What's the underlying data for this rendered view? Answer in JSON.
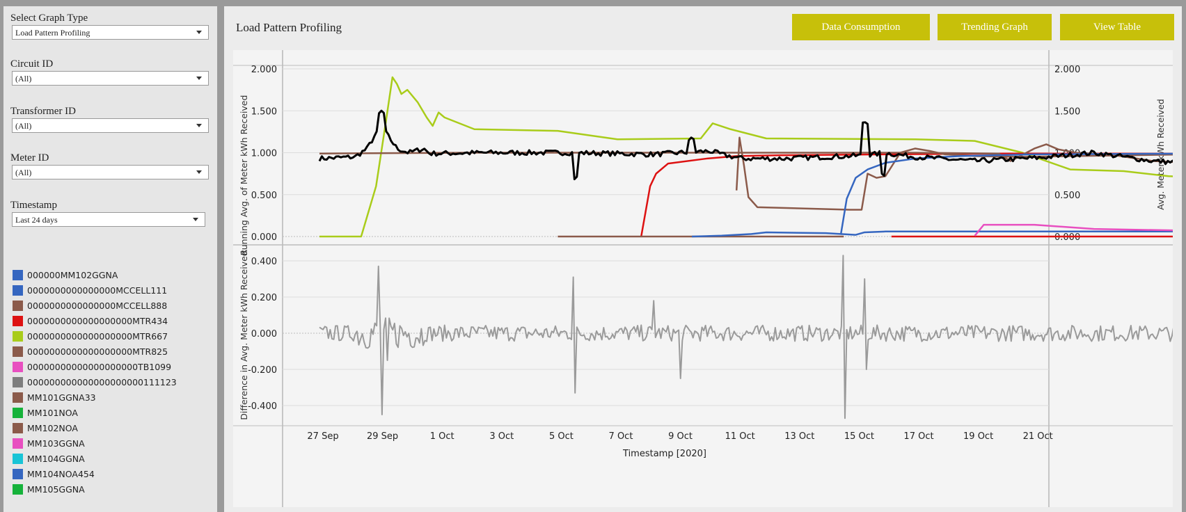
{
  "filters": {
    "graph_type": {
      "label": "Select Graph Type",
      "value": "Load Pattern Profiling"
    },
    "circuit": {
      "label": "Circuit ID",
      "value": "(All)"
    },
    "transformer": {
      "label": "Transformer ID",
      "value": "(All)"
    },
    "meter": {
      "label": "Meter ID",
      "value": "(All)"
    },
    "timestamp": {
      "label": "Timestamp",
      "value": "Last 24 days"
    }
  },
  "legend": [
    {
      "label": "000000MM102GGNA",
      "color": "#3566c0"
    },
    {
      "label": "0000000000000000MCCELL111",
      "color": "#3566c0"
    },
    {
      "label": "0000000000000000MCCELL888",
      "color": "#8b5a4a"
    },
    {
      "label": "0000000000000000000MTR434",
      "color": "#dd1111"
    },
    {
      "label": "0000000000000000000MTR667",
      "color": "#a9cc1a"
    },
    {
      "label": "0000000000000000000MTR825",
      "color": "#8b5a4a"
    },
    {
      "label": "00000000000000000000TB1099",
      "color": "#e84fc0"
    },
    {
      "label": "000000000000000000000111123",
      "color": "#7d7d7d"
    },
    {
      "label": "MM101GGNA33",
      "color": "#8b5a4a"
    },
    {
      "label": "MM101NOA",
      "color": "#16b23a"
    },
    {
      "label": "MM102NOA",
      "color": "#8b5a4a"
    },
    {
      "label": "MM103GGNA",
      "color": "#e84fc0"
    },
    {
      "label": "MM104GGNA",
      "color": "#18c4d6"
    },
    {
      "label": "MM104NOA454",
      "color": "#3566c0"
    },
    {
      "label": "MM105GGNA",
      "color": "#16b23a"
    }
  ],
  "header": {
    "title": "Load Pattern Profiling",
    "buttons": [
      "Data Consumption",
      "Trending Graph",
      "View Table"
    ],
    "button_color": "#c7c00a"
  },
  "chart_data": [
    {
      "type": "line",
      "ylabel": "Running Avg. of Meter kWh Received",
      "ylabel_right": "Avg. Meter kWh Received",
      "yticks": [
        "0.000",
        "0.500",
        "1.000",
        "1.500",
        "2.000"
      ],
      "ylim": [
        0,
        2
      ],
      "xlim_days": "Sep 27 – Oct 21, 2020",
      "series": [
        {
          "color": "#a9cc1a",
          "points": [
            [
              0,
              0
            ],
            [
              1.4,
              0
            ],
            [
              1.9,
              0.6
            ],
            [
              2.2,
              1.3
            ],
            [
              2.45,
              1.9
            ],
            [
              2.6,
              1.82
            ],
            [
              2.75,
              1.7
            ],
            [
              2.95,
              1.75
            ],
            [
              3.3,
              1.6
            ],
            [
              3.6,
              1.42
            ],
            [
              3.8,
              1.32
            ],
            [
              4.0,
              1.48
            ],
            [
              4.2,
              1.42
            ],
            [
              5.2,
              1.28
            ],
            [
              8.0,
              1.26
            ],
            [
              10.0,
              1.16
            ],
            [
              12.8,
              1.17
            ],
            [
              13.2,
              1.35
            ],
            [
              13.8,
              1.28
            ],
            [
              15.0,
              1.17
            ],
            [
              20.0,
              1.16
            ],
            [
              22.0,
              1.14
            ],
            [
              23.6,
              1.0
            ],
            [
              25.2,
              0.8
            ],
            [
              27.0,
              0.78
            ],
            [
              28.5,
              0.72
            ],
            [
              29.2,
              0.71
            ]
          ]
        },
        {
          "color": "#dd1111",
          "points": [
            [
              10.8,
              0
            ],
            [
              11.1,
              0.6
            ],
            [
              11.3,
              0.75
            ],
            [
              11.7,
              0.87
            ],
            [
              13.0,
              0.93
            ],
            [
              14.0,
              0.96
            ],
            [
              15.5,
              0.97
            ],
            [
              19.0,
              0.98
            ],
            [
              23.0,
              0.99
            ],
            [
              29.2,
              0.99
            ]
          ]
        },
        {
          "color": "#dd1111",
          "points": [
            [
              19.2,
              0
            ],
            [
              29.2,
              0
            ]
          ]
        },
        {
          "color": "#8b5a4a",
          "points": [
            [
              0,
              0.99
            ],
            [
              5.0,
              1.0
            ],
            [
              20.0,
              1.0
            ],
            [
              22.8,
              0.99
            ],
            [
              23.2,
              0.9
            ],
            [
              24.0,
              1.05
            ],
            [
              24.4,
              1.1
            ],
            [
              24.8,
              1.04
            ],
            [
              25.4,
              1.0
            ],
            [
              26.5,
              0.98
            ],
            [
              28.0,
              0.9
            ],
            [
              29.2,
              0.88
            ]
          ]
        },
        {
          "color": "#8b5a4a",
          "points": [
            [
              14.0,
              0.55
            ],
            [
              14.1,
              1.18
            ],
            [
              14.25,
              0.85
            ],
            [
              14.4,
              0.47
            ],
            [
              14.7,
              0.35
            ],
            [
              17.8,
              0.32
            ],
            [
              18.2,
              0.32
            ],
            [
              18.4,
              0.75
            ],
            [
              18.7,
              0.7
            ],
            [
              19.0,
              0.72
            ],
            [
              19.5,
              1.0
            ],
            [
              20.0,
              1.05
            ],
            [
              20.5,
              1.02
            ],
            [
              21.0,
              0.98
            ],
            [
              22.0,
              0.96
            ],
            [
              23.5,
              0.95
            ],
            [
              29.2,
              0.98
            ]
          ]
        },
        {
          "color": "#8b5a4a",
          "points": [
            [
              8.0,
              0
            ],
            [
              17.6,
              0
            ]
          ]
        },
        {
          "color": "#3566c0",
          "points": [
            [
              12.5,
              0
            ],
            [
              13.5,
              0.01
            ],
            [
              14.5,
              0.03
            ],
            [
              15.0,
              0.05
            ],
            [
              17.0,
              0.04
            ],
            [
              18.0,
              0.02
            ],
            [
              18.3,
              0.05
            ],
            [
              19.0,
              0.06
            ],
            [
              29.2,
              0.06
            ]
          ]
        },
        {
          "color": "#3566c0",
          "points": [
            [
              17.5,
              0.02
            ],
            [
              17.7,
              0.45
            ],
            [
              18.0,
              0.7
            ],
            [
              18.4,
              0.8
            ],
            [
              19.0,
              0.88
            ],
            [
              20.0,
              0.93
            ],
            [
              21.5,
              0.96
            ],
            [
              24.0,
              0.98
            ],
            [
              29.2,
              0.99
            ]
          ]
        },
        {
          "color": "#e84fc0",
          "points": [
            [
              22.0,
              0.01
            ],
            [
              22.3,
              0.14
            ],
            [
              24.0,
              0.14
            ],
            [
              26.0,
              0.09
            ],
            [
              29.2,
              0.07
            ]
          ]
        },
        {
          "color": "#000000",
          "stroke_width": 3,
          "noisy": true,
          "points": [
            [
              0,
              0.93
            ],
            [
              1.2,
              0.95
            ],
            [
              1.6,
              1.05
            ],
            [
              1.85,
              1.2
            ],
            [
              2.1,
              1.3
            ],
            [
              2.3,
              1.2
            ],
            [
              2.6,
              1.05
            ],
            [
              3.0,
              1.0
            ],
            [
              3.5,
              1.05
            ],
            [
              3.7,
              0.99
            ],
            [
              5.6,
              1.0
            ],
            [
              8.5,
              1.0
            ],
            [
              11.2,
              0.98
            ],
            [
              13.1,
              1.02
            ],
            [
              13.6,
              0.97
            ],
            [
              14.2,
              0.93
            ],
            [
              15.6,
              0.93
            ],
            [
              17.0,
              0.95
            ],
            [
              18.5,
              0.97
            ],
            [
              18.9,
              1.0
            ],
            [
              20.0,
              0.95
            ],
            [
              22.0,
              0.9
            ],
            [
              24.2,
              0.94
            ],
            [
              26.0,
              1.0
            ],
            [
              28.0,
              0.9
            ],
            [
              29.0,
              0.88
            ],
            [
              29.2,
              0.6
            ]
          ]
        }
      ]
    },
    {
      "type": "line",
      "ylabel": "Difference in Avg. Meter kWh Received",
      "yticks": [
        "-0.400",
        "-0.200",
        "0.000",
        "0.200",
        "0.400"
      ],
      "ylim": [
        -0.5,
        0.5
      ],
      "series": [
        {
          "color": "#9a9a9a",
          "noisy": true,
          "points": [
            [
              0,
              0
            ]
          ]
        }
      ]
    }
  ],
  "x_axis": {
    "labels": [
      "27 Sep",
      "29 Sep",
      "1 Oct",
      "3 Oct",
      "5 Oct",
      "7 Oct",
      "9 Oct",
      "11 Oct",
      "13 Oct",
      "15 Oct",
      "17 Oct",
      "19 Oct",
      "21 Oct"
    ],
    "title": "Timestamp [2020]"
  }
}
